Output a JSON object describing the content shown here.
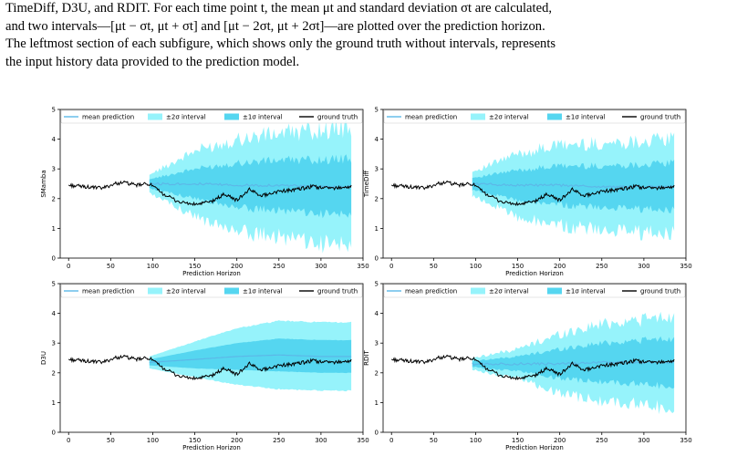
{
  "caption": {
    "lines": [
      "TimeDiff, D3U, and RDIT. For each time point t, the mean μt and standard deviation σt are calculated,",
      "and two intervals—[μt − σt, μt + σt] and [μt − 2σt, μt + 2σt]—are plotted over the prediction horizon.",
      "The leftmost section of each subfigure, which shows only the ground truth without intervals, represents",
      "the input history data provided to the prediction model."
    ]
  },
  "legend_labels": {
    "mean": "mean prediction",
    "two_sigma": "±2σ interval",
    "one_sigma": "±1σ interval",
    "truth": "ground truth"
  },
  "colors": {
    "two_sigma": "#96f3fb",
    "one_sigma": "#55d6f0",
    "mean": "#5cb8e8",
    "truth": "#000000"
  },
  "chart_data": [
    {
      "type": "area",
      "ylabel": "SMamba",
      "xlabel": "Prediction Horizon",
      "xticks": [
        0,
        50,
        100,
        150,
        200,
        250,
        300,
        350
      ],
      "yticks": [
        0,
        1,
        2,
        3,
        4,
        5
      ],
      "xlim": [
        -10,
        350
      ],
      "ylim": [
        0,
        5
      ],
      "history_end": 96,
      "mean": [
        [
          96,
          2.5
        ],
        [
          150,
          2.5
        ],
        [
          200,
          2.45
        ],
        [
          250,
          2.45
        ],
        [
          300,
          2.4
        ],
        [
          336,
          2.4
        ]
      ],
      "one_sigma": [
        [
          96,
          0.15
        ],
        [
          150,
          0.5
        ],
        [
          200,
          0.75
        ],
        [
          250,
          0.85
        ],
        [
          300,
          0.9
        ],
        [
          336,
          0.95
        ]
      ],
      "two_sigma": [
        [
          96,
          0.3
        ],
        [
          150,
          1.1
        ],
        [
          200,
          1.55
        ],
        [
          250,
          1.75
        ],
        [
          300,
          1.9
        ],
        [
          336,
          2.0
        ]
      ],
      "truth": [
        [
          0,
          2.45
        ],
        [
          20,
          2.4
        ],
        [
          40,
          2.35
        ],
        [
          55,
          2.5
        ],
        [
          65,
          2.55
        ],
        [
          80,
          2.45
        ],
        [
          96,
          2.5
        ],
        [
          110,
          2.2
        ],
        [
          130,
          1.9
        ],
        [
          150,
          1.8
        ],
        [
          170,
          1.9
        ],
        [
          185,
          2.15
        ],
        [
          200,
          1.95
        ],
        [
          215,
          2.3
        ],
        [
          230,
          2.1
        ],
        [
          250,
          2.25
        ],
        [
          270,
          2.3
        ],
        [
          290,
          2.4
        ],
        [
          310,
          2.35
        ],
        [
          336,
          2.4
        ]
      ]
    },
    {
      "type": "area",
      "ylabel": "TimeDiff",
      "xlabel": "Prediction Horizon",
      "xticks": [
        0,
        50,
        100,
        150,
        200,
        250,
        300,
        350
      ],
      "yticks": [
        0,
        1,
        2,
        3,
        4,
        5
      ],
      "xlim": [
        -10,
        350
      ],
      "ylim": [
        0,
        5
      ],
      "history_end": 96,
      "mean": [
        [
          96,
          2.5
        ],
        [
          150,
          2.45
        ],
        [
          200,
          2.45
        ],
        [
          250,
          2.4
        ],
        [
          300,
          2.4
        ],
        [
          336,
          2.4
        ]
      ],
      "one_sigma": [
        [
          96,
          0.2
        ],
        [
          150,
          0.5
        ],
        [
          200,
          0.65
        ],
        [
          250,
          0.7
        ],
        [
          300,
          0.75
        ],
        [
          336,
          0.8
        ]
      ],
      "two_sigma": [
        [
          96,
          0.4
        ],
        [
          150,
          1.05
        ],
        [
          200,
          1.35
        ],
        [
          250,
          1.45
        ],
        [
          300,
          1.55
        ],
        [
          336,
          1.6
        ]
      ],
      "truth": [
        [
          0,
          2.45
        ],
        [
          20,
          2.4
        ],
        [
          40,
          2.35
        ],
        [
          55,
          2.5
        ],
        [
          65,
          2.55
        ],
        [
          80,
          2.45
        ],
        [
          96,
          2.5
        ],
        [
          110,
          2.2
        ],
        [
          130,
          1.9
        ],
        [
          150,
          1.8
        ],
        [
          170,
          1.9
        ],
        [
          185,
          2.15
        ],
        [
          200,
          1.95
        ],
        [
          215,
          2.3
        ],
        [
          230,
          2.1
        ],
        [
          250,
          2.25
        ],
        [
          270,
          2.3
        ],
        [
          290,
          2.4
        ],
        [
          310,
          2.35
        ],
        [
          336,
          2.4
        ]
      ]
    },
    {
      "type": "area",
      "ylabel": "D3U",
      "xlabel": "Prediction Horizon",
      "xticks": [
        0,
        50,
        100,
        150,
        200,
        250,
        300,
        350
      ],
      "yticks": [
        0,
        1,
        2,
        3,
        4,
        5
      ],
      "xlim": [
        -10,
        350
      ],
      "ylim": [
        0,
        5
      ],
      "history_end": 96,
      "mean": [
        [
          96,
          2.35
        ],
        [
          150,
          2.45
        ],
        [
          200,
          2.55
        ],
        [
          250,
          2.6
        ],
        [
          300,
          2.55
        ],
        [
          336,
          2.55
        ]
      ],
      "one_sigma": [
        [
          96,
          0.1
        ],
        [
          150,
          0.3
        ],
        [
          200,
          0.45
        ],
        [
          250,
          0.55
        ],
        [
          300,
          0.55
        ],
        [
          336,
          0.55
        ]
      ],
      "two_sigma": [
        [
          96,
          0.2
        ],
        [
          150,
          0.6
        ],
        [
          200,
          0.95
        ],
        [
          250,
          1.15
        ],
        [
          300,
          1.15
        ],
        [
          336,
          1.15
        ]
      ],
      "truth": [
        [
          0,
          2.45
        ],
        [
          20,
          2.4
        ],
        [
          40,
          2.35
        ],
        [
          55,
          2.5
        ],
        [
          65,
          2.55
        ],
        [
          80,
          2.45
        ],
        [
          96,
          2.5
        ],
        [
          110,
          2.2
        ],
        [
          130,
          1.9
        ],
        [
          150,
          1.8
        ],
        [
          170,
          1.9
        ],
        [
          185,
          2.15
        ],
        [
          200,
          1.95
        ],
        [
          215,
          2.3
        ],
        [
          230,
          2.1
        ],
        [
          250,
          2.25
        ],
        [
          270,
          2.3
        ],
        [
          290,
          2.4
        ],
        [
          310,
          2.35
        ],
        [
          336,
          2.4
        ]
      ]
    },
    {
      "type": "area",
      "ylabel": "RDIT",
      "xlabel": "Prediction Horizon",
      "xticks": [
        0,
        50,
        100,
        150,
        200,
        250,
        300,
        350
      ],
      "yticks": [
        0,
        1,
        2,
        3,
        4,
        5
      ],
      "xlim": [
        -10,
        350
      ],
      "ylim": [
        0,
        5
      ],
      "history_end": 96,
      "mean": [
        [
          96,
          2.3
        ],
        [
          150,
          2.3
        ],
        [
          200,
          2.3
        ],
        [
          250,
          2.35
        ],
        [
          300,
          2.35
        ],
        [
          336,
          2.35
        ]
      ],
      "one_sigma": [
        [
          96,
          0.1
        ],
        [
          150,
          0.25
        ],
        [
          200,
          0.5
        ],
        [
          250,
          0.65
        ],
        [
          300,
          0.75
        ],
        [
          336,
          0.8
        ]
      ],
      "two_sigma": [
        [
          96,
          0.2
        ],
        [
          150,
          0.5
        ],
        [
          200,
          1.0
        ],
        [
          250,
          1.3
        ],
        [
          300,
          1.45
        ],
        [
          336,
          1.55
        ]
      ],
      "truth": [
        [
          0,
          2.45
        ],
        [
          20,
          2.4
        ],
        [
          40,
          2.35
        ],
        [
          55,
          2.5
        ],
        [
          65,
          2.55
        ],
        [
          80,
          2.45
        ],
        [
          96,
          2.5
        ],
        [
          110,
          2.2
        ],
        [
          130,
          1.9
        ],
        [
          150,
          1.8
        ],
        [
          170,
          1.9
        ],
        [
          185,
          2.15
        ],
        [
          200,
          1.95
        ],
        [
          215,
          2.3
        ],
        [
          230,
          2.1
        ],
        [
          250,
          2.25
        ],
        [
          270,
          2.3
        ],
        [
          290,
          2.4
        ],
        [
          310,
          2.35
        ],
        [
          336,
          2.4
        ]
      ]
    }
  ]
}
